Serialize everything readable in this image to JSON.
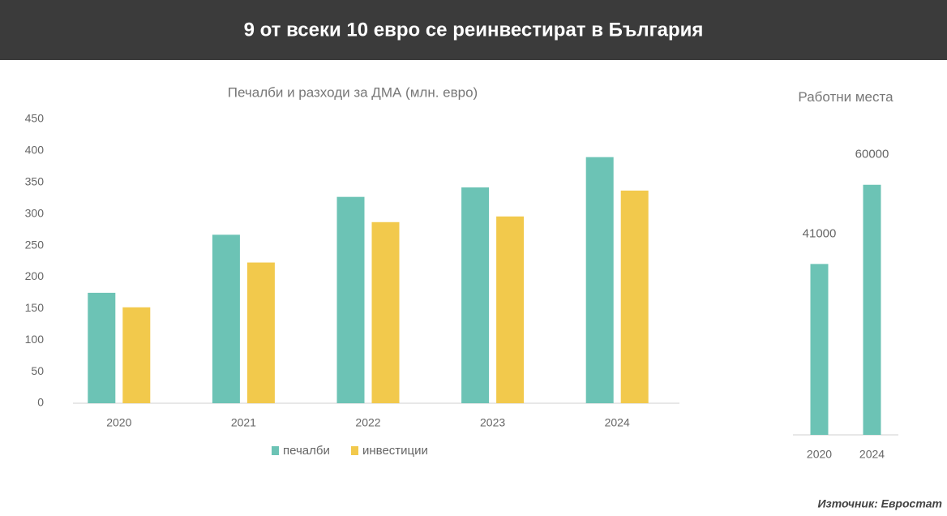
{
  "header": {
    "title": "9 от всеки 10 евро се реинвестират в България"
  },
  "chart_data": [
    {
      "type": "bar",
      "title": "Печалби и разходи за ДМА (млн. евро)",
      "categories": [
        "2020",
        "2021",
        "2022",
        "2023",
        "2024"
      ],
      "series": [
        {
          "name": "печалби",
          "color": "#6cc3b5",
          "values": [
            175,
            267,
            327,
            342,
            390
          ]
        },
        {
          "name": "инвестиции",
          "color": "#f2c94c",
          "values": [
            152,
            223,
            287,
            296,
            337
          ]
        }
      ],
      "ylim": [
        0,
        450
      ],
      "yticks": [
        0,
        50,
        100,
        150,
        200,
        250,
        300,
        350,
        400,
        450
      ],
      "grid": false,
      "legend": "bottom"
    },
    {
      "type": "bar",
      "title": "Работни места",
      "categories": [
        "2020",
        "2024"
      ],
      "values": [
        41000,
        60000
      ],
      "color": "#6cc3b5",
      "ylim": [
        0,
        80000
      ],
      "data_labels": true
    }
  ],
  "source": "Източник: Евростат"
}
